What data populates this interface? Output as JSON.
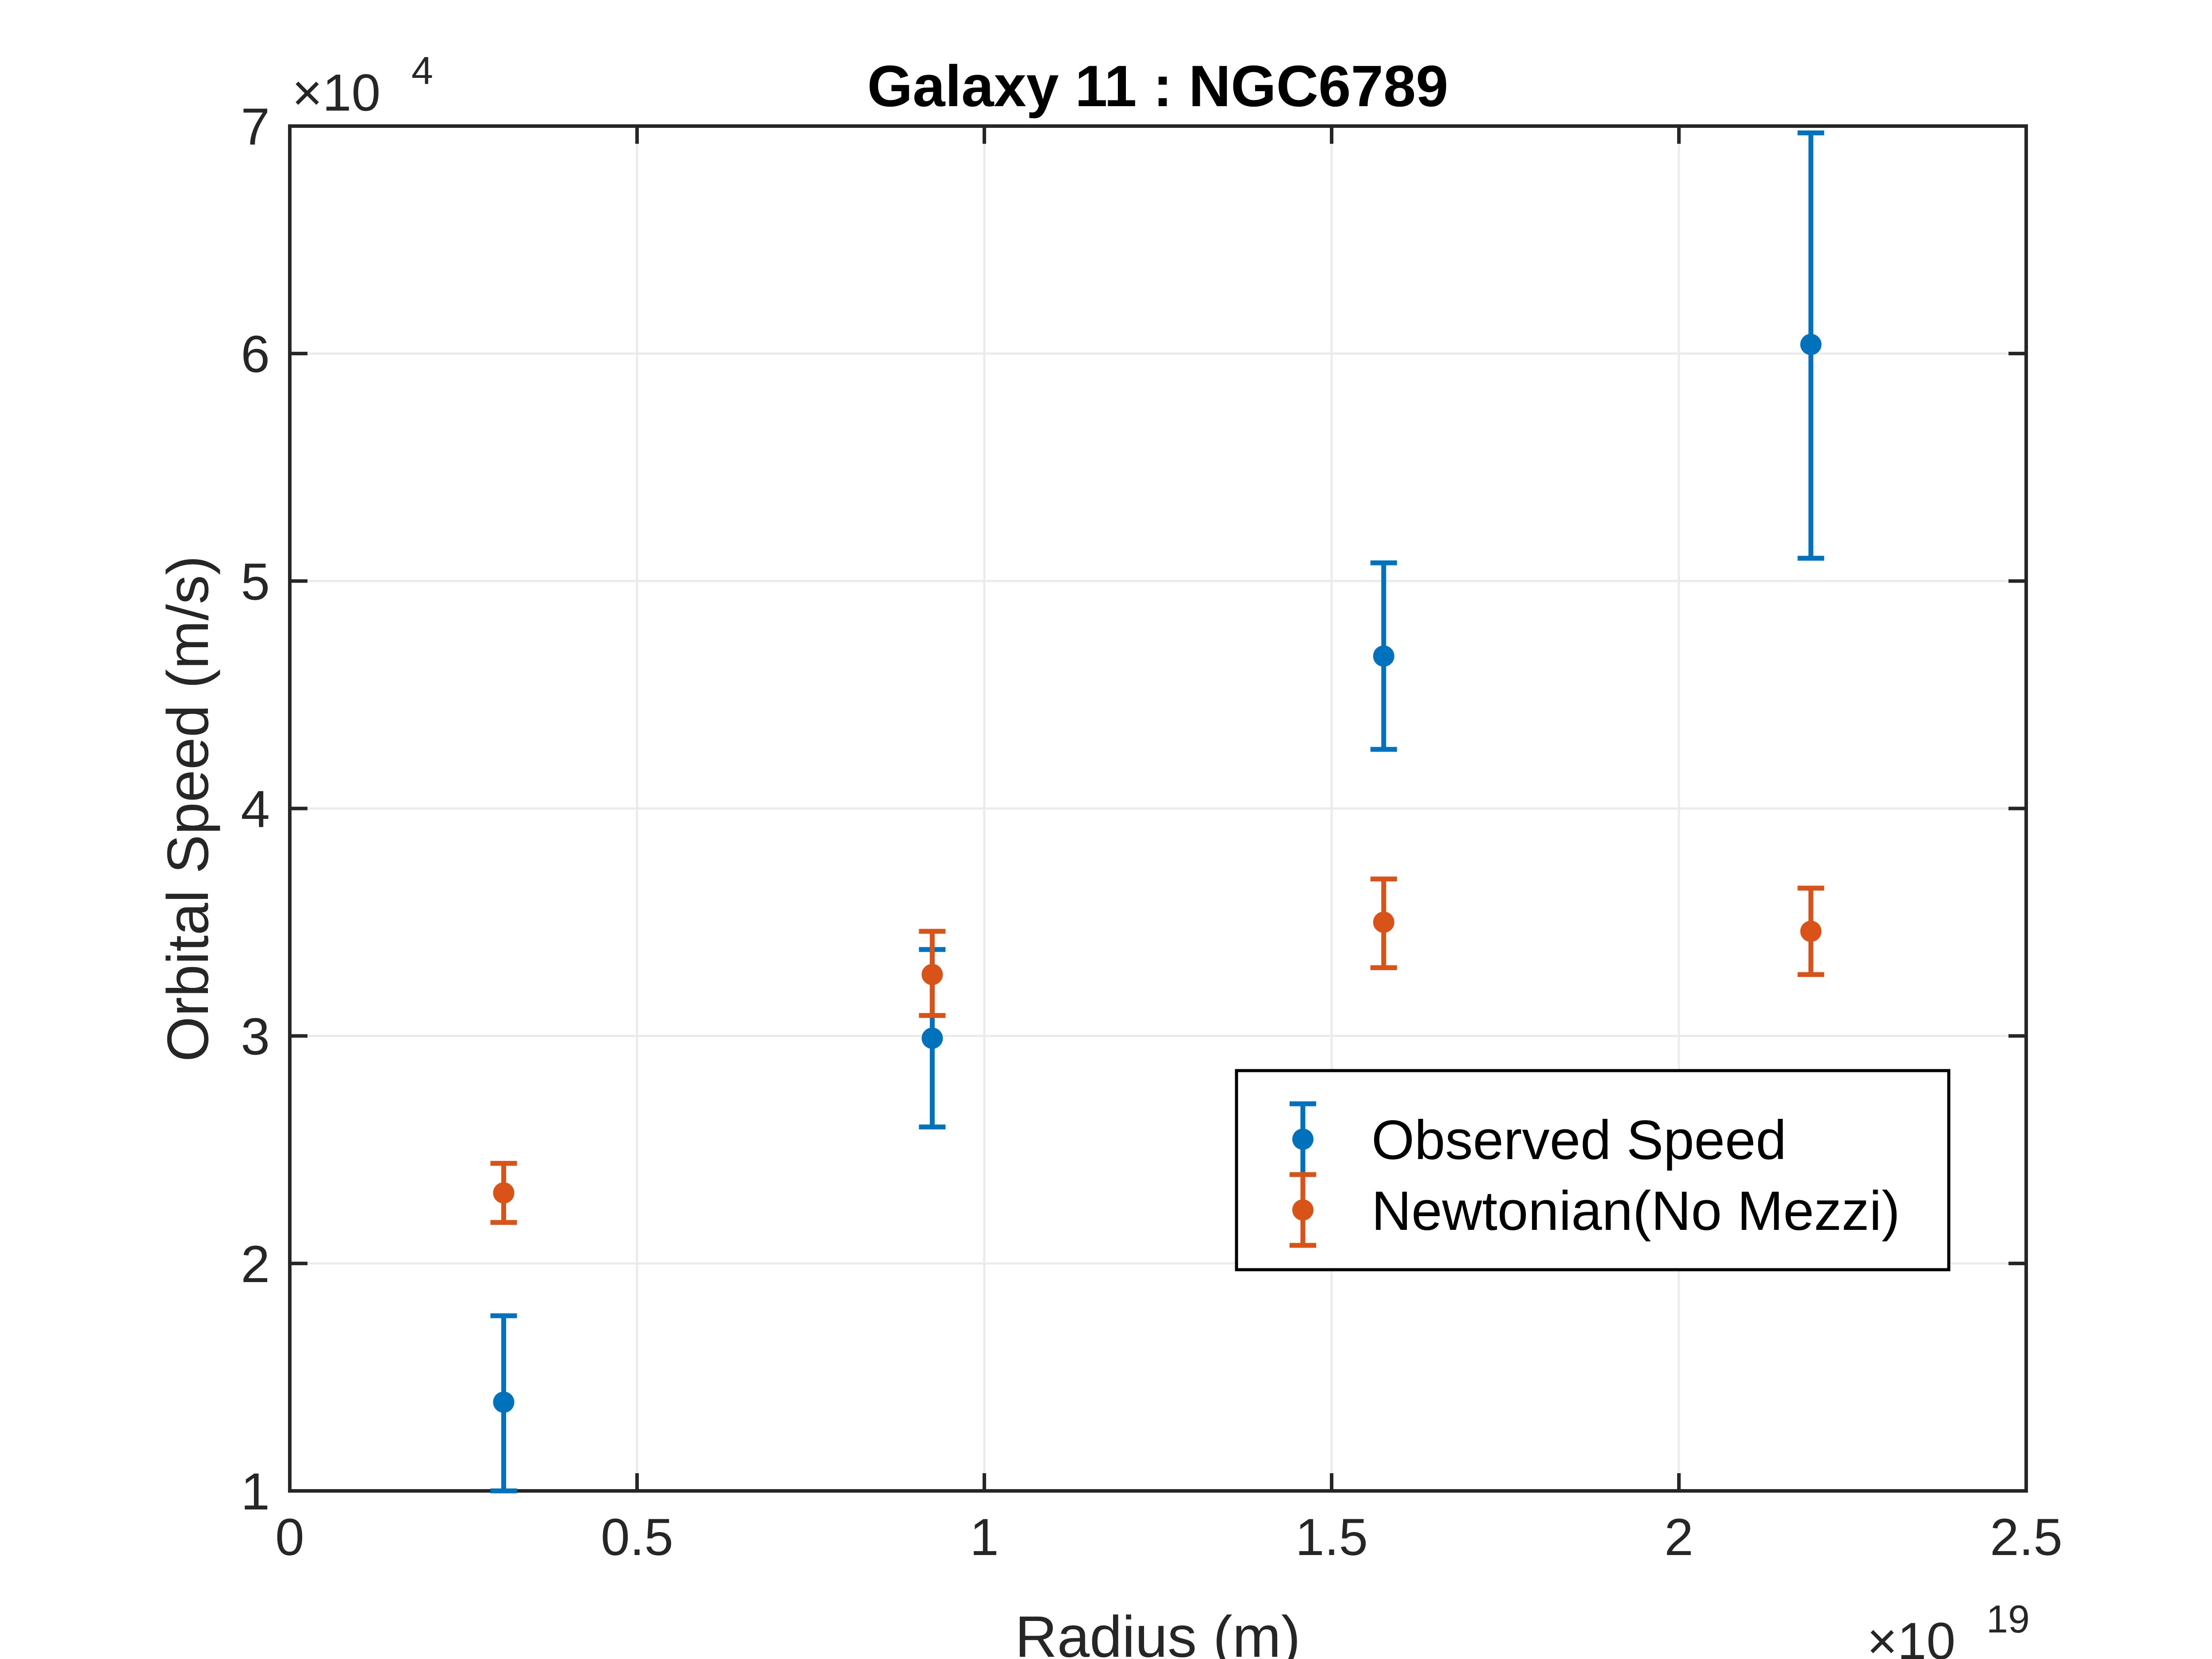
{
  "chart_data": {
    "type": "scatter",
    "title": "Galaxy 11 : NGC6789",
    "xlabel": "Radius (m)",
    "ylabel": "Orbital Speed (m/s)",
    "x_multiplier": "×10",
    "x_exponent": "19",
    "y_multiplier": "×10",
    "y_exponent": "4",
    "xlim": [
      0,
      2.5
    ],
    "ylim": [
      1,
      7
    ],
    "x_ticks": [
      0,
      0.5,
      1,
      1.5,
      2,
      2.5
    ],
    "x_tick_labels": [
      "0",
      "0.5",
      "1",
      "1.5",
      "2",
      "2.5"
    ],
    "y_ticks": [
      1,
      2,
      3,
      4,
      5,
      6,
      7
    ],
    "y_tick_labels": [
      "1",
      "2",
      "3",
      "4",
      "5",
      "6",
      "7"
    ],
    "grid": true,
    "legend_position": "center-right",
    "series": [
      {
        "name": "Observed Speed",
        "color": "#0072BD",
        "x": [
          0.308,
          0.925,
          1.575,
          2.19
        ],
        "y": [
          1.39,
          2.99,
          4.67,
          6.04
        ],
        "err_low": [
          1.0,
          2.6,
          4.26,
          5.1
        ],
        "err_high": [
          1.77,
          3.38,
          5.08,
          6.97
        ]
      },
      {
        "name": "Newtonian(No Mezzi)",
        "color": "#D95319",
        "x": [
          0.308,
          0.925,
          1.575,
          2.19
        ],
        "y": [
          2.31,
          3.27,
          3.5,
          3.46
        ],
        "err_low": [
          2.18,
          3.09,
          3.3,
          3.27
        ],
        "err_high": [
          2.44,
          3.46,
          3.69,
          3.65
        ]
      }
    ]
  }
}
